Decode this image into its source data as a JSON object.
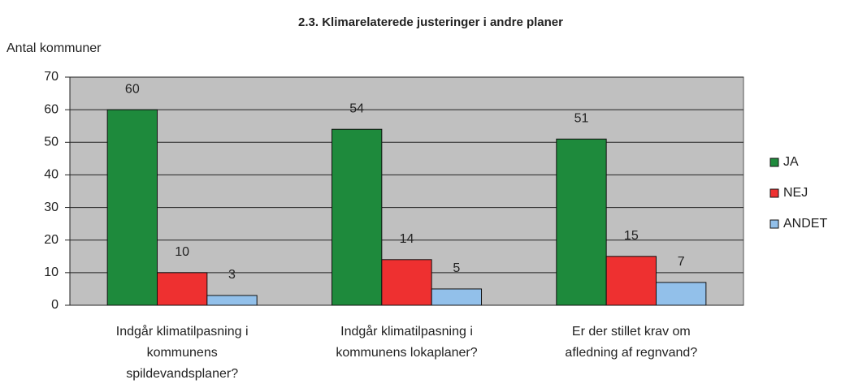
{
  "chart_data": {
    "type": "bar",
    "title": "2.3. Klimarelaterede justeringer i andre planer",
    "y_label": "Antal kommuner",
    "categories": [
      "Indgår klimatilpasning i kommunens spildevandsplaner?",
      "Indgår klimatilpasning i kommunens lokaplaner?",
      "Er der stillet krav om afledning af regnvand?"
    ],
    "series": [
      {
        "name": "JA",
        "color": "#1e8a3c",
        "values": [
          60,
          54,
          51
        ]
      },
      {
        "name": "NEJ",
        "color": "#ee3030",
        "values": [
          10,
          14,
          15
        ]
      },
      {
        "name": "ANDET",
        "color": "#92c0ea",
        "values": [
          3,
          5,
          7
        ]
      }
    ],
    "ylim": [
      0,
      70
    ],
    "yticks": [
      0,
      10,
      20,
      30,
      40,
      50,
      60,
      70
    ],
    "grid": true,
    "legend": "right",
    "background": "#c0c0c0"
  }
}
